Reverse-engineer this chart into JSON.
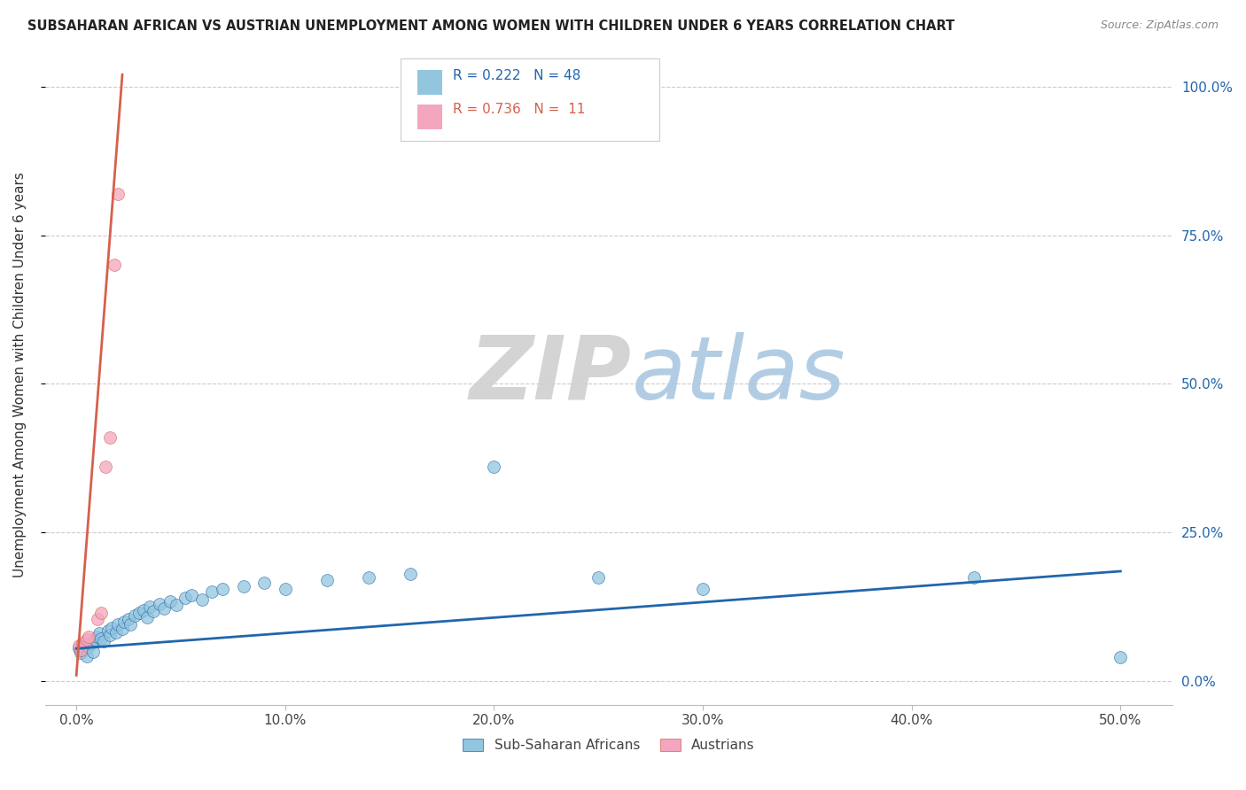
{
  "title": "SUBSAHARAN AFRICAN VS AUSTRIAN UNEMPLOYMENT AMONG WOMEN WITH CHILDREN UNDER 6 YEARS CORRELATION CHART",
  "source": "Source: ZipAtlas.com",
  "ylabel": "Unemployment Among Women with Children Under 6 years",
  "xlabel_ticks": [
    "0.0%",
    "10.0%",
    "20.0%",
    "30.0%",
    "40.0%",
    "50.0%"
  ],
  "xlabel_vals": [
    0.0,
    0.1,
    0.2,
    0.3,
    0.4,
    0.5
  ],
  "ylabel_ticks_right": [
    "100.0%",
    "75.0%",
    "50.0%",
    "25.0%",
    "0.0%"
  ],
  "ylabel_vals": [
    0.0,
    0.25,
    0.5,
    0.75,
    1.0
  ],
  "xlim": [
    -0.015,
    0.525
  ],
  "ylim": [
    -0.04,
    1.07
  ],
  "blue_R": "0.222",
  "blue_N": "48",
  "pink_R": "0.736",
  "pink_N": "11",
  "blue_color": "#92c5de",
  "pink_color": "#f4a6be",
  "blue_line_color": "#2166ac",
  "pink_line_color": "#d6604d",
  "watermark_zip": "ZIP",
  "watermark_atlas": "atlas",
  "legend_label_blue": "Sub-Saharan Africans",
  "legend_label_pink": "Austrians",
  "blue_scatter_x": [
    0.001,
    0.002,
    0.003,
    0.004,
    0.005,
    0.006,
    0.007,
    0.008,
    0.009,
    0.01,
    0.011,
    0.012,
    0.013,
    0.015,
    0.016,
    0.017,
    0.019,
    0.02,
    0.022,
    0.023,
    0.025,
    0.026,
    0.028,
    0.03,
    0.032,
    0.034,
    0.035,
    0.037,
    0.04,
    0.042,
    0.045,
    0.048,
    0.052,
    0.055,
    0.06,
    0.065,
    0.07,
    0.08,
    0.09,
    0.1,
    0.12,
    0.14,
    0.16,
    0.2,
    0.25,
    0.3,
    0.43,
    0.5
  ],
  "blue_scatter_y": [
    0.055,
    0.048,
    0.052,
    0.06,
    0.042,
    0.058,
    0.065,
    0.05,
    0.07,
    0.075,
    0.08,
    0.072,
    0.068,
    0.085,
    0.078,
    0.09,
    0.082,
    0.095,
    0.088,
    0.1,
    0.105,
    0.095,
    0.11,
    0.115,
    0.12,
    0.108,
    0.125,
    0.118,
    0.13,
    0.122,
    0.135,
    0.128,
    0.14,
    0.145,
    0.138,
    0.15,
    0.155,
    0.16,
    0.165,
    0.155,
    0.17,
    0.175,
    0.18,
    0.36,
    0.175,
    0.155,
    0.175,
    0.04
  ],
  "pink_scatter_x": [
    0.001,
    0.002,
    0.003,
    0.005,
    0.006,
    0.01,
    0.012,
    0.014,
    0.016,
    0.018,
    0.02
  ],
  "pink_scatter_y": [
    0.06,
    0.052,
    0.065,
    0.07,
    0.075,
    0.105,
    0.115,
    0.36,
    0.41,
    0.7,
    0.82
  ],
  "blue_line_x": [
    0.0,
    0.5
  ],
  "blue_line_y": [
    0.055,
    0.185
  ],
  "pink_line_x": [
    0.0,
    0.022
  ],
  "pink_line_y": [
    0.01,
    1.02
  ]
}
